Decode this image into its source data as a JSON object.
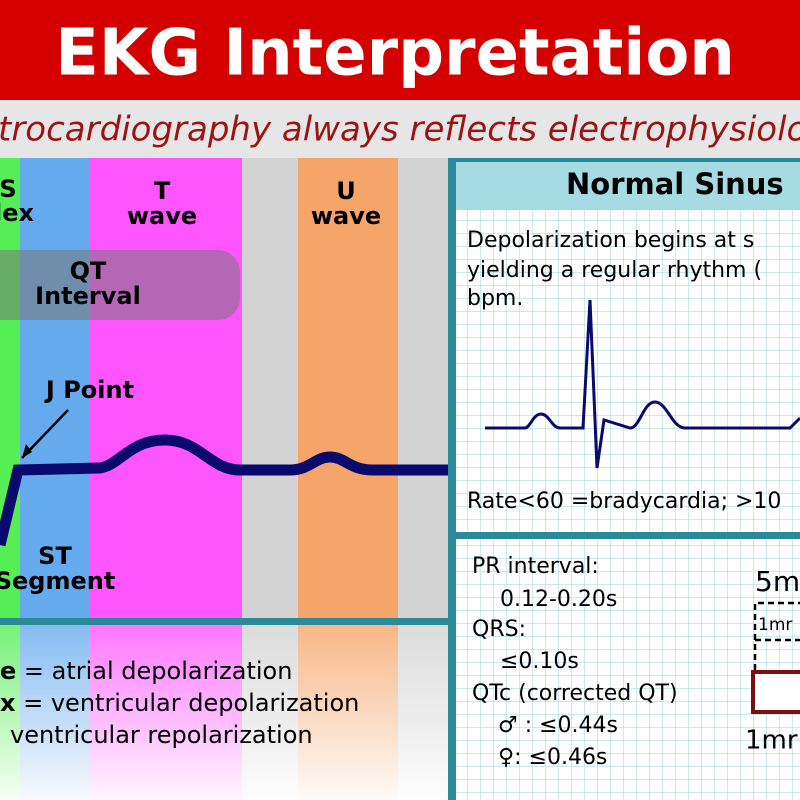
{
  "header": {
    "title": "EKG Interpretation",
    "subtitle": "trocardiography always reflects electrophysiolo"
  },
  "waveform": {
    "labels": {
      "qrs_top": "S",
      "qrs_bottom": "lex",
      "t_top": "T",
      "t_bottom": "wave",
      "u_top": "U",
      "u_bottom": "wave",
      "qt_top": "QT",
      "qt_bottom": "Interval",
      "j_point": "J Point",
      "st_top": "ST",
      "st_bottom": "Segment"
    }
  },
  "legend": {
    "items": [
      {
        "key": "e",
        "text": " = atrial depolarization"
      },
      {
        "key": "x",
        "text": " = ventricular depolarization"
      },
      {
        "key": "",
        "text": "ventricular repolarization"
      }
    ]
  },
  "sinus": {
    "title": "Normal Sinus",
    "description": [
      "Depolarization begins at s",
      "yielding a regular rhythm (",
      "bpm."
    ],
    "rate": "Rate<60 =bradycardia; >10"
  },
  "intervals": {
    "lines": [
      "PR interval:",
      "0.12-0.20s",
      "QRS:",
      "≤0.10s",
      "QTc (corrected QT)",
      "♂ : ≤0.44s",
      "♀: ≤0.46s"
    ],
    "scale": {
      "big": "5m",
      "small_top": "1mr",
      "small_bottom": "1mr"
    }
  }
}
